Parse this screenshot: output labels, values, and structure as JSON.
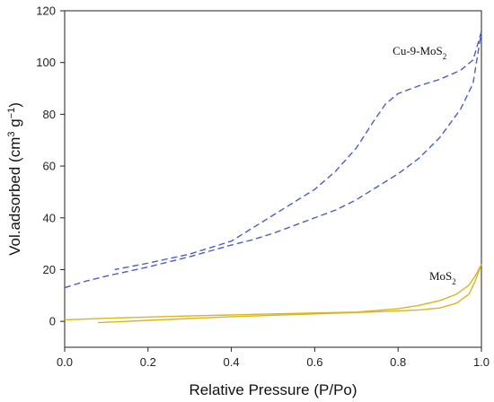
{
  "chart_data": {
    "type": "line",
    "title": "",
    "xlabel": "Relative Pressure (P/Po)",
    "ylabel": "Vol.adsorbed (cm3 g−1)",
    "ylabel_parts": {
      "base": "Vol.adsorbed (cm",
      "sup1": "3",
      "mid": " g",
      "sup2": "−1",
      "end": ")"
    },
    "xlim": [
      0.0,
      1.0
    ],
    "ylim": [
      -10,
      120
    ],
    "xticks": [
      "0.0",
      "0.2",
      "0.4",
      "0.6",
      "0.8",
      "1.0"
    ],
    "yticks": [
      "0",
      "20",
      "40",
      "60",
      "80",
      "100",
      "120"
    ],
    "grid": false,
    "series": [
      {
        "name": "Cu-9-MoS2",
        "label_parts": {
          "base": "Cu-9-MoS",
          "sub": "2"
        },
        "color": "#4a5fc1",
        "style": "dashed",
        "adsorption": {
          "x": [
            0.0,
            0.05,
            0.1,
            0.2,
            0.3,
            0.4,
            0.45,
            0.5,
            0.55,
            0.6,
            0.65,
            0.7,
            0.75,
            0.8,
            0.85,
            0.9,
            0.95,
            0.98,
            1.0
          ],
          "y": [
            13,
            15.5,
            17.5,
            21,
            25,
            29.5,
            31.5,
            34,
            37,
            40,
            43,
            47,
            52,
            57,
            63,
            71,
            82,
            92,
            112
          ]
        },
        "desorption": {
          "x": [
            1.0,
            0.98,
            0.95,
            0.9,
            0.85,
            0.8,
            0.77,
            0.74,
            0.7,
            0.65,
            0.6,
            0.55,
            0.5,
            0.45,
            0.4,
            0.3,
            0.2,
            0.12
          ],
          "y": [
            112,
            101,
            97,
            93.5,
            91,
            88,
            84,
            77,
            67,
            58,
            51,
            46,
            41,
            36,
            31,
            26,
            22.5,
            20
          ]
        }
      },
      {
        "name": "MoS2",
        "label_parts": {
          "base": "MoS",
          "sub": "2"
        },
        "color": "#d9b51f",
        "style": "solid",
        "adsorption": {
          "x": [
            0.08,
            0.2,
            0.4,
            0.6,
            0.75,
            0.85,
            0.9,
            0.94,
            0.97,
            0.985,
            1.0
          ],
          "y": [
            -0.5,
            0.4,
            1.8,
            2.9,
            3.7,
            4.4,
            5.2,
            7.0,
            10.5,
            15.5,
            22
          ]
        },
        "desorption": {
          "x": [
            1.0,
            0.985,
            0.97,
            0.94,
            0.9,
            0.85,
            0.8,
            0.7,
            0.5,
            0.3,
            0.1,
            0.0
          ],
          "y": [
            22,
            17.5,
            14,
            10.5,
            8.0,
            6.2,
            4.9,
            3.6,
            2.9,
            2.1,
            1.2,
            0.6
          ]
        }
      }
    ]
  }
}
